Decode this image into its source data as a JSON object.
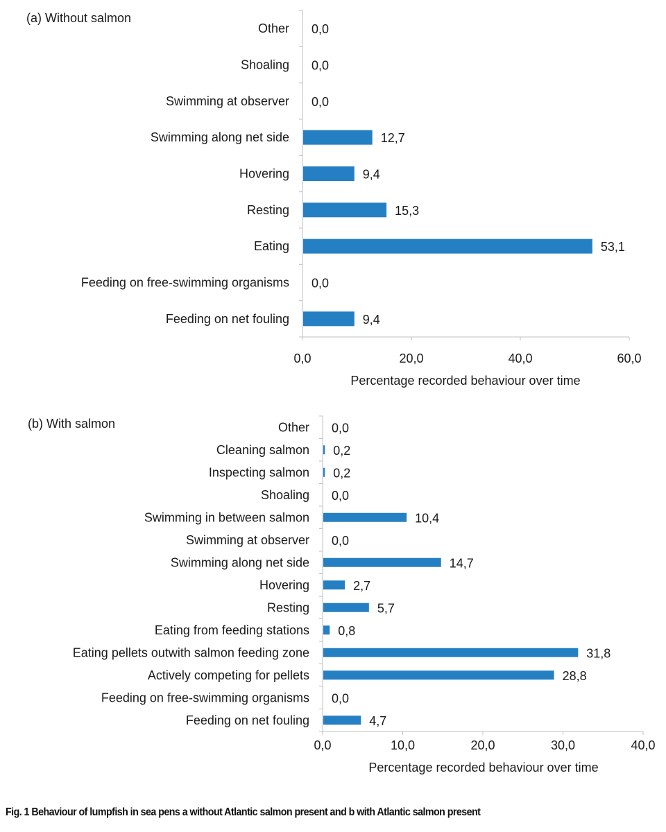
{
  "chart_data": [
    {
      "type": "bar",
      "orientation": "horizontal",
      "title": "(a) Without salmon",
      "categories": [
        "Other",
        "Shoaling",
        "Swimming at observer",
        "Swimming along net side",
        "Hovering",
        "Resting",
        "Eating",
        "Feeding on free-swimming organisms",
        "Feeding on net fouling"
      ],
      "values": [
        0.0,
        0.0,
        0.0,
        12.7,
        9.4,
        15.3,
        53.1,
        0.0,
        9.4
      ],
      "value_labels": [
        "0,0",
        "0,0",
        "0,0",
        "12,7",
        "9,4",
        "15,3",
        "53,1",
        "0,0",
        "9,4"
      ],
      "xlabel": "Percentage recorded behaviour over time",
      "ylabel": "",
      "xlim": [
        0,
        60
      ],
      "xticks": [
        0,
        20,
        40,
        60
      ],
      "xtick_labels": [
        "0,0",
        "20,0",
        "40,0",
        "60,0"
      ],
      "grid": false,
      "color": "#2580C3"
    },
    {
      "type": "bar",
      "orientation": "horizontal",
      "title": "(b) With salmon",
      "categories": [
        "Other",
        "Cleaning salmon",
        "Inspecting salmon",
        "Shoaling",
        "Swimming in between salmon",
        "Swimming at observer",
        "Swimming along net side",
        "Hovering",
        "Resting",
        "Eating from feeding stations",
        "Eating pellets outwith salmon feeding zone",
        "Actively competing for pellets",
        "Feeding on free-swimming organisms",
        "Feeding on net fouling"
      ],
      "values": [
        0.0,
        0.2,
        0.2,
        0.0,
        10.4,
        0.0,
        14.7,
        2.7,
        5.7,
        0.8,
        31.8,
        28.8,
        0.0,
        4.7
      ],
      "value_labels": [
        "0,0",
        "0,2",
        "0,2",
        "0,0",
        "10,4",
        "0,0",
        "14,7",
        "2,7",
        "5,7",
        "0,8",
        "31,8",
        "28,8",
        "0,0",
        "4,7"
      ],
      "xlabel": "Percentage recorded behaviour over time",
      "ylabel": "",
      "xlim": [
        0,
        40
      ],
      "xticks": [
        0,
        10,
        20,
        30,
        40
      ],
      "xtick_labels": [
        "0,0",
        "10,0",
        "20,0",
        "30,0",
        "40,0"
      ],
      "grid": false,
      "color": "#2580C3"
    }
  ],
  "caption": "Fig. 1 Behaviour of lumpfish in sea pens a without Atlantic salmon present and b with Atlantic salmon present"
}
